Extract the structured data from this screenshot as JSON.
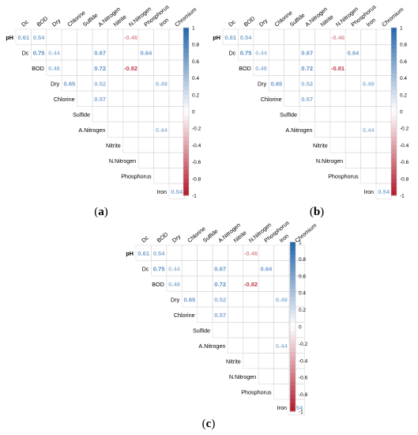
{
  "figure": {
    "captions": [
      "(a)",
      "(b)",
      "(c)"
    ],
    "caption_letters": [
      "a",
      "b",
      "c"
    ]
  },
  "chart_data": [
    {
      "type": "heatmap",
      "panel": "(a)",
      "variables": [
        "pH",
        "Dc",
        "BOD",
        "Dry",
        "Chlorine",
        "Sulfide",
        "A.Nitrogen",
        "Nitrite",
        "N.Nitrogen",
        "Phosphorus",
        "Iron",
        "Chromium"
      ],
      "row_labels": [
        "pH",
        "Dc",
        "BOD",
        "Dry",
        "Chlorine",
        "Sulfide",
        "A.Nitrogen",
        "Nitrite",
        "N.Nitrogen",
        "Phosphorus",
        "Iron"
      ],
      "col_labels": [
        "Dc",
        "BOD",
        "Dry",
        "Chlorine",
        "Sulfide",
        "A.Nitrogen",
        "Nitrite",
        "N.Nitrogen",
        "Phosphorus",
        "Iron",
        "Chromium"
      ],
      "cells": [
        {
          "row": "pH",
          "col": "Dc",
          "value": "0.61"
        },
        {
          "row": "pH",
          "col": "BOD",
          "value": "0.54"
        },
        {
          "row": "pH",
          "col": "N.Nitrogen",
          "value": "-0.46"
        },
        {
          "row": "Dc",
          "col": "BOD",
          "value": "0.75"
        },
        {
          "row": "Dc",
          "col": "Dry",
          "value": "0.44"
        },
        {
          "row": "Dc",
          "col": "A.Nitrogen",
          "value": "0.67"
        },
        {
          "row": "Dc",
          "col": "Phosphorus",
          "value": "0.64"
        },
        {
          "row": "BOD",
          "col": "Dry",
          "value": "0.48"
        },
        {
          "row": "BOD",
          "col": "A.Nitrogen",
          "value": "0.72"
        },
        {
          "row": "BOD",
          "col": "N.Nitrogen",
          "value": "-0.82"
        },
        {
          "row": "Dry",
          "col": "Chlorine",
          "value": "0.65"
        },
        {
          "row": "Dry",
          "col": "A.Nitrogen",
          "value": "0.52"
        },
        {
          "row": "Dry",
          "col": "Iron",
          "value": "0.49"
        },
        {
          "row": "Chlorine",
          "col": "A.Nitrogen",
          "value": "0.57"
        },
        {
          "row": "A.Nitrogen",
          "col": "Iron",
          "value": "0.44"
        },
        {
          "row": "Iron",
          "col": "Chromium",
          "value": "0.54"
        }
      ],
      "colorbar": {
        "ticks": [
          "1",
          "0.8",
          "0.6",
          "0.4",
          "0.2",
          "0",
          "-0.2",
          "-0.4",
          "-0.6",
          "-0.8",
          "-1"
        ],
        "range": [
          -1,
          1
        ],
        "positive_color": "#2166ac",
        "negative_color": "#b2182b"
      }
    },
    {
      "type": "heatmap",
      "panel": "(b)",
      "variables": [
        "pH",
        "Dc",
        "BOD",
        "Dry",
        "Chlorine",
        "Sulfide",
        "A.Nitrogen",
        "Nitrite",
        "N.Nitrogen",
        "Phosphorus",
        "Iron",
        "Chromium"
      ],
      "row_labels": [
        "pH",
        "Dc",
        "BOD",
        "Dry",
        "Chlorine",
        "Sulfide",
        "A.Nitrogen",
        "Nitrite",
        "N.Nitrogen",
        "Phosphorus",
        "Iron"
      ],
      "col_labels": [
        "Dc",
        "BOD",
        "Dry",
        "Chlorine",
        "Sulfide",
        "A.Nitrogen",
        "Nitrite",
        "N.Nitrogen",
        "Phosphorus",
        "Iron",
        "Chromium"
      ],
      "cells": [
        {
          "row": "pH",
          "col": "Dc",
          "value": "0.61"
        },
        {
          "row": "pH",
          "col": "BOD",
          "value": "0.54"
        },
        {
          "row": "pH",
          "col": "N.Nitrogen",
          "value": "-0.46"
        },
        {
          "row": "Dc",
          "col": "BOD",
          "value": "0.75"
        },
        {
          "row": "Dc",
          "col": "Dry",
          "value": "0.44"
        },
        {
          "row": "Dc",
          "col": "A.Nitrogen",
          "value": "0.67"
        },
        {
          "row": "Dc",
          "col": "Phosphorus",
          "value": "0.64"
        },
        {
          "row": "BOD",
          "col": "Dry",
          "value": "0.48"
        },
        {
          "row": "BOD",
          "col": "A.Nitrogen",
          "value": "0.72"
        },
        {
          "row": "BOD",
          "col": "N.Nitrogen",
          "value": "-0.81"
        },
        {
          "row": "Dry",
          "col": "Chlorine",
          "value": "0.65"
        },
        {
          "row": "Dry",
          "col": "A.Nitrogen",
          "value": "0.52"
        },
        {
          "row": "Dry",
          "col": "Iron",
          "value": "0.49"
        },
        {
          "row": "Chlorine",
          "col": "A.Nitrogen",
          "value": "0.57"
        },
        {
          "row": "A.Nitrogen",
          "col": "Iron",
          "value": "0.44"
        },
        {
          "row": "Iron",
          "col": "Chromium",
          "value": "0.54"
        }
      ],
      "colorbar": {
        "ticks": [
          "1",
          "0.8",
          "0.6",
          "0.4",
          "0.2",
          "0",
          "-0.2",
          "-0.4",
          "-0.6",
          "-0.8",
          "-1"
        ],
        "range": [
          -1,
          1
        ],
        "positive_color": "#2166ac",
        "negative_color": "#b2182b"
      }
    },
    {
      "type": "heatmap",
      "panel": "(c)",
      "variables": [
        "pH",
        "Dc",
        "BOD",
        "Dry",
        "Chlorine",
        "Sulfide",
        "A.Nitrogen",
        "Nitrite",
        "N.Nitrogen",
        "Phosphorus",
        "Iron",
        "Chromium"
      ],
      "row_labels": [
        "pH",
        "Dc",
        "BOD",
        "Dry",
        "Chlorine",
        "Sulfide",
        "A.Nitrogen",
        "Nitrite",
        "N.Nitrogen",
        "Phosphorus",
        "Iron"
      ],
      "col_labels": [
        "Dc",
        "BOD",
        "Dry",
        "Chlorine",
        "Sulfide",
        "A.Nitrogen",
        "Nitrite",
        "N.Nitrogen",
        "Phosphorus",
        "Iron",
        "Chromium"
      ],
      "cells": [
        {
          "row": "pH",
          "col": "Dc",
          "value": "0.61"
        },
        {
          "row": "pH",
          "col": "BOD",
          "value": "0.54"
        },
        {
          "row": "pH",
          "col": "N.Nitrogen",
          "value": "-0.46"
        },
        {
          "row": "Dc",
          "col": "BOD",
          "value": "0.75"
        },
        {
          "row": "Dc",
          "col": "Dry",
          "value": "0.44"
        },
        {
          "row": "Dc",
          "col": "A.Nitrogen",
          "value": "0.67"
        },
        {
          "row": "Dc",
          "col": "Phosphorus",
          "value": "0.64"
        },
        {
          "row": "BOD",
          "col": "Dry",
          "value": "0.48"
        },
        {
          "row": "BOD",
          "col": "A.Nitrogen",
          "value": "0.72"
        },
        {
          "row": "BOD",
          "col": "N.Nitrogen",
          "value": "-0.82"
        },
        {
          "row": "Dry",
          "col": "Chlorine",
          "value": "0.65"
        },
        {
          "row": "Dry",
          "col": "A.Nitrogen",
          "value": "0.52"
        },
        {
          "row": "Dry",
          "col": "Iron",
          "value": "0.49"
        },
        {
          "row": "Chlorine",
          "col": "A.Nitrogen",
          "value": "0.57"
        },
        {
          "row": "A.Nitrogen",
          "col": "Iron",
          "value": "0.44"
        },
        {
          "row": "Iron",
          "col": "Chromium",
          "value": "0.54"
        }
      ],
      "colorbar": {
        "ticks": [
          "1",
          "0.8",
          "0.6",
          "0.4",
          "0.2",
          "0",
          "-0.2",
          "-0.4",
          "-0.6",
          "-0.8",
          "-1"
        ],
        "range": [
          -1,
          1
        ],
        "positive_color": "#2166ac",
        "negative_color": "#b2182b"
      }
    }
  ]
}
